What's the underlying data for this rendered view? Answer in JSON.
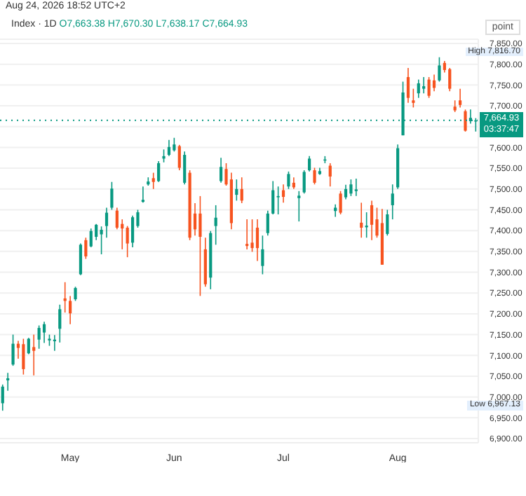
{
  "chart_data": {
    "type": "candlestick",
    "title": "Index · 1D",
    "subtitle": "Aug 24, 2026 18:52 UTC+2",
    "ylabel": "point",
    "categories": [
      null,
      null,
      null,
      null,
      null,
      null,
      null,
      null,
      null,
      null,
      null,
      null,
      null,
      "May",
      null,
      null,
      null,
      null,
      null,
      null,
      null,
      null,
      null,
      null,
      null,
      null,
      null,
      null,
      null,
      null,
      null,
      null,
      null,
      "Jun",
      null,
      null,
      null,
      null,
      null,
      null,
      null,
      null,
      null,
      null,
      null,
      null,
      null,
      null,
      null,
      null,
      null,
      null,
      null,
      null,
      "Jul",
      null,
      null,
      null,
      null,
      null,
      null,
      null,
      null,
      null,
      null,
      null,
      null,
      null,
      null,
      null,
      null,
      null,
      null,
      null,
      null,
      null,
      "Aug",
      null,
      null,
      null,
      null,
      null,
      null,
      null,
      null,
      null,
      null,
      null,
      null,
      null,
      null,
      null
    ],
    "ohlc": [
      [
        6985,
        7030,
        6967.13,
        7025
      ],
      [
        7040,
        7058,
        7015,
        7045
      ],
      [
        7078,
        7150,
        7075,
        7128
      ],
      [
        7128,
        7135,
        7092,
        7118
      ],
      [
        7127,
        7140,
        7054,
        7067
      ],
      [
        7105,
        7142,
        7103,
        7140
      ],
      [
        7120,
        7150,
        7052,
        7111
      ],
      [
        7138,
        7172,
        7116,
        7166
      ],
      [
        7155,
        7181,
        7130,
        7175
      ],
      [
        7136,
        7150,
        7123,
        7140
      ],
      [
        7134,
        7149,
        7111,
        7138
      ],
      [
        7164,
        7222,
        7131,
        7211
      ],
      [
        7237,
        7276,
        7203,
        7231
      ],
      [
        7231,
        7243,
        7175,
        7201
      ],
      [
        7235,
        7265,
        7231,
        7262
      ],
      [
        7295,
        7369,
        7293,
        7366
      ],
      [
        7377,
        7383,
        7332,
        7338
      ],
      [
        7362,
        7405,
        7360,
        7399
      ],
      [
        7385,
        7416,
        7377,
        7414
      ],
      [
        7391,
        7410,
        7343,
        7402
      ],
      [
        7411,
        7455,
        7383,
        7443
      ],
      [
        7455,
        7517,
        7450,
        7501
      ],
      [
        7448,
        7455,
        7403,
        7407
      ],
      [
        7416,
        7427,
        7355,
        7405
      ],
      [
        7407,
        7411,
        7336,
        7369
      ],
      [
        7371,
        7436,
        7360,
        7432
      ],
      [
        7411,
        7450,
        7407,
        7444
      ],
      [
        7469,
        7506,
        7467,
        7474
      ],
      [
        7511,
        7528,
        7508,
        7518
      ],
      [
        7526,
        7539,
        7500,
        7517
      ],
      [
        7519,
        7567,
        7517,
        7562
      ],
      [
        7573,
        7595,
        7564,
        7579
      ],
      [
        7582,
        7618,
        7579,
        7601
      ],
      [
        7593,
        7623,
        7590,
        7607
      ],
      [
        7603,
        7606,
        7545,
        7551
      ],
      [
        7515,
        7590,
        7511,
        7582
      ],
      [
        7539,
        7545,
        7377,
        7383
      ],
      [
        7441,
        7466,
        7388,
        7403
      ],
      [
        7441,
        7483,
        7243,
        7385
      ],
      [
        7355,
        7383,
        7265,
        7271
      ],
      [
        7287,
        7399,
        7259,
        7394
      ],
      [
        7411,
        7461,
        7366,
        7431
      ],
      [
        7519,
        7575,
        7515,
        7553
      ],
      [
        7548,
        7562,
        7508,
        7511
      ],
      [
        7523,
        7539,
        7403,
        7418
      ],
      [
        7486,
        7523,
        7472,
        7500
      ],
      [
        7500,
        7528,
        7466,
        7472
      ],
      [
        7368,
        7427,
        7355,
        7363
      ],
      [
        7371,
        7427,
        7349,
        7358
      ],
      [
        7407,
        7427,
        7327,
        7358
      ],
      [
        7315,
        7388,
        7295,
        7355
      ],
      [
        7394,
        7448,
        7388,
        7441
      ],
      [
        7441,
        7519,
        7439,
        7497
      ],
      [
        7480,
        7506,
        7439,
        7483
      ],
      [
        7497,
        7511,
        7467,
        7481
      ],
      [
        7506,
        7542,
        7500,
        7536
      ],
      [
        7515,
        7528,
        7500,
        7504
      ],
      [
        7478,
        7495,
        7422,
        7484
      ],
      [
        7492,
        7545,
        7489,
        7541
      ],
      [
        7545,
        7579,
        7542,
        7573
      ],
      [
        7545,
        7551,
        7511,
        7515
      ],
      [
        7536,
        7551,
        7534,
        7543
      ],
      [
        7569,
        7579,
        7562,
        7571
      ],
      [
        7556,
        7562,
        7506,
        7530
      ],
      [
        7447,
        7463,
        7433,
        7455
      ],
      [
        7489,
        7495,
        7439,
        7443
      ],
      [
        7480,
        7510,
        7475,
        7500
      ],
      [
        7489,
        7523,
        7483,
        7511
      ],
      [
        7495,
        7525,
        7483,
        7499
      ],
      [
        7419,
        7467,
        7383,
        7407
      ],
      [
        7408,
        7444,
        7383,
        7412
      ],
      [
        7461,
        7472,
        7377,
        7414
      ],
      [
        7427,
        7455,
        7383,
        7388
      ],
      [
        7418,
        7452,
        7318,
        7318
      ],
      [
        7392,
        7450,
        7388,
        7439
      ],
      [
        7461,
        7511,
        7427,
        7489
      ],
      [
        7504,
        7607,
        7500,
        7598
      ],
      [
        7629,
        7758,
        7629,
        7732
      ],
      [
        7769,
        7791,
        7707,
        7719
      ],
      [
        7713,
        7741,
        7696,
        7707
      ],
      [
        7730,
        7763,
        7719,
        7754
      ],
      [
        7741,
        7769,
        7730,
        7747
      ],
      [
        7763,
        7769,
        7719,
        7724
      ],
      [
        7761,
        7775,
        7735,
        7743
      ],
      [
        7761,
        7816.7,
        7758,
        7797
      ],
      [
        7803,
        7808,
        7780,
        7786
      ],
      [
        7788,
        7791,
        7735,
        7741
      ],
      [
        7698,
        7713,
        7685,
        7689
      ],
      [
        7713,
        7741,
        7696,
        7702
      ],
      [
        7687,
        7691,
        7638,
        7640
      ],
      [
        7663,
        7691,
        7657,
        7671
      ],
      [
        7663.38,
        7670.3,
        7638.17,
        7664.93
      ]
    ],
    "colors": [
      "#089981",
      "#089981",
      "#089981",
      "#f7531f",
      "#f7531f",
      "#089981",
      "#f7531f",
      "#089981",
      "#089981",
      "#089981",
      "#089981",
      "#089981",
      "#f7531f",
      "#f7531f",
      "#089981",
      "#089981",
      "#f7531f",
      "#089981",
      "#089981",
      "#089981",
      "#089981",
      "#089981",
      "#f7531f",
      "#f7531f",
      "#f7531f",
      "#089981",
      "#089981",
      "#089981",
      "#089981",
      "#f7531f",
      "#089981",
      "#089981",
      "#089981",
      "#089981",
      "#f7531f",
      "#089981",
      "#f7531f",
      "#f7531f",
      "#f7531f",
      "#f7531f",
      "#089981",
      "#089981",
      "#089981",
      "#f7531f",
      "#f7531f",
      "#089981",
      "#f7531f",
      "#f7531f",
      "#f7531f",
      "#f7531f",
      "#089981",
      "#089981",
      "#089981",
      "#089981",
      "#f7531f",
      "#089981",
      "#f7531f",
      "#089981",
      "#089981",
      "#089981",
      "#f7531f",
      "#089981",
      "#089981",
      "#f7531f",
      "#089981",
      "#f7531f",
      "#089981",
      "#089981",
      "#089981",
      "#f7531f",
      "#089981",
      "#f7531f",
      "#f7531f",
      "#f7531f",
      "#089981",
      "#089981",
      "#089981",
      "#089981",
      "#f7531f",
      "#f7531f",
      "#089981",
      "#089981",
      "#f7531f",
      "#f7531f",
      "#089981",
      "#f7531f",
      "#f7531f",
      "#f7531f",
      "#f7531f",
      "#f7531f",
      "#089981",
      "#089981"
    ],
    "ylim": [
      6890,
      7860
    ],
    "yticks": [
      {
        "value": 6900,
        "label": "6,900.00"
      },
      {
        "value": 6950,
        "label": "6,950.00"
      },
      {
        "value": 7000,
        "label": "7,000.00"
      },
      {
        "value": 7050,
        "label": "7,050.00"
      },
      {
        "value": 7100,
        "label": "7,100.00"
      },
      {
        "value": 7150,
        "label": "7,150.00"
      },
      {
        "value": 7200,
        "label": "7,200.00"
      },
      {
        "value": 7250,
        "label": "7,250.00"
      },
      {
        "value": 7300,
        "label": "7,300.00"
      },
      {
        "value": 7350,
        "label": "7,350.00"
      },
      {
        "value": 7400,
        "label": "7,400.00"
      },
      {
        "value": 7450,
        "label": "7,450.00"
      },
      {
        "value": 7500,
        "label": "7,500.00"
      },
      {
        "value": 7550,
        "label": "7,550.00"
      },
      {
        "value": 7600,
        "label": "7,600.00"
      },
      {
        "value": 7650,
        "label": null
      },
      {
        "value": 7700,
        "label": "7,700.00"
      },
      {
        "value": 7750,
        "label": "7,750.00"
      },
      {
        "value": 7800,
        "label": "7,800.00"
      },
      {
        "value": 7850,
        "label": "7,850.00"
      }
    ],
    "grid": "y",
    "ref_lines": [
      {
        "axis": "y",
        "value": 7664.93,
        "label": "7,664.93",
        "color": "#089981",
        "line_style": "dotted"
      }
    ],
    "annotations": [
      "O7,663.38 H7,670.30 L7,638.17 C7,664.93",
      "03:37:47",
      "High 7,816.70",
      "Low 6,967.13"
    ]
  }
}
